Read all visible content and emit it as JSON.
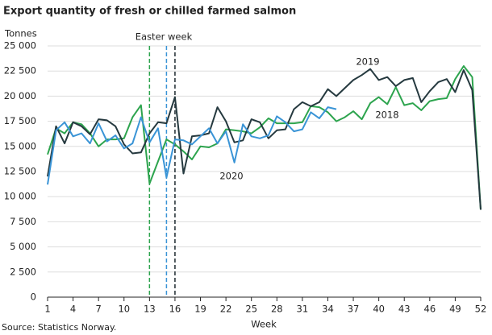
{
  "chart_data": {
    "type": "line",
    "title": "Export quantity of fresh or chilled farmed salmon",
    "y_label": "Tonnes",
    "x_label": "Week",
    "source": "Source: Statistics Norway.",
    "annotations": {
      "easter": "Easter week",
      "y2019": "2019",
      "y2018": "2018",
      "y2020": "2020"
    },
    "x": [
      1,
      2,
      3,
      4,
      5,
      6,
      7,
      8,
      9,
      10,
      11,
      12,
      13,
      14,
      15,
      16,
      17,
      18,
      19,
      20,
      21,
      22,
      23,
      24,
      25,
      26,
      27,
      28,
      29,
      30,
      31,
      32,
      33,
      34,
      35,
      36,
      37,
      38,
      39,
      40,
      41,
      42,
      43,
      44,
      45,
      46,
      47,
      48,
      49,
      50,
      51,
      52
    ],
    "xlim": [
      1,
      52
    ],
    "xticks": [
      1,
      4,
      7,
      10,
      13,
      16,
      19,
      22,
      25,
      28,
      31,
      34,
      37,
      40,
      43,
      46,
      49,
      52
    ],
    "ylim": [
      0,
      25000
    ],
    "yticks": [
      {
        "value": 0,
        "label": "0"
      },
      {
        "value": 2500,
        "label": "2 500"
      },
      {
        "value": 5000,
        "label": "5 000"
      },
      {
        "value": 7500,
        "label": "7 500"
      },
      {
        "value": 10000,
        "label": "10 000"
      },
      {
        "value": 12500,
        "label": "12 500"
      },
      {
        "value": 15000,
        "label": "15 000"
      },
      {
        "value": 17500,
        "label": "17 500"
      },
      {
        "value": 20000,
        "label": "20 000"
      },
      {
        "value": 22500,
        "label": "22 500"
      },
      {
        "value": 25000,
        "label": "25 000"
      }
    ],
    "grid": true,
    "easter_lines": [
      {
        "x": 13,
        "color": "#2da44e"
      },
      {
        "x": 15,
        "color": "#3a94d6"
      },
      {
        "x": 16,
        "color": "#1e2a30"
      }
    ],
    "series": [
      {
        "name": "2018",
        "color": "#2da44e",
        "values": [
          14200,
          16800,
          16300,
          17400,
          17200,
          16300,
          15000,
          15700,
          15700,
          15800,
          17900,
          19100,
          11300,
          13500,
          15700,
          15200,
          14500,
          13700,
          15000,
          14900,
          15300,
          16700,
          16600,
          16500,
          16300,
          16900,
          17800,
          17300,
          17300,
          17300,
          17400,
          19000,
          18900,
          18400,
          17500,
          17900,
          18500,
          17700,
          19300,
          19900,
          19200,
          20900,
          19100,
          19300,
          18600,
          19500,
          19700,
          19800,
          21700,
          23000,
          21900,
          8700
        ]
      },
      {
        "name": "2019",
        "color": "#25393f",
        "values": [
          12000,
          17000,
          15300,
          17400,
          17000,
          16200,
          17700,
          17600,
          17000,
          15200,
          14300,
          14400,
          16300,
          17400,
          17300,
          19900,
          12300,
          16000,
          16100,
          16300,
          18900,
          17500,
          15400,
          15600,
          17700,
          17400,
          15800,
          16600,
          16700,
          18700,
          19400,
          19000,
          19400,
          20700,
          20000,
          20800,
          21600,
          22100,
          22700,
          21600,
          21900,
          21000,
          21600,
          21800,
          19400,
          20500,
          21400,
          21700,
          20400,
          22600,
          20600,
          8700
        ]
      },
      {
        "name": "2020",
        "color": "#3a94d6",
        "values": [
          11200,
          16600,
          17400,
          16000,
          16300,
          15300,
          17300,
          15500,
          16100,
          14800,
          15300,
          17900,
          15400,
          16800,
          11900,
          15700,
          15600,
          15200,
          16000,
          16800,
          15300,
          16500,
          13400,
          17200,
          16000,
          15800,
          16100,
          18000,
          17400,
          16500,
          16700,
          18400,
          17800,
          18900,
          18700,
          null,
          null,
          null,
          null,
          null,
          null,
          null,
          null,
          null,
          null,
          null,
          null,
          null,
          null,
          null,
          null,
          null
        ]
      }
    ]
  }
}
